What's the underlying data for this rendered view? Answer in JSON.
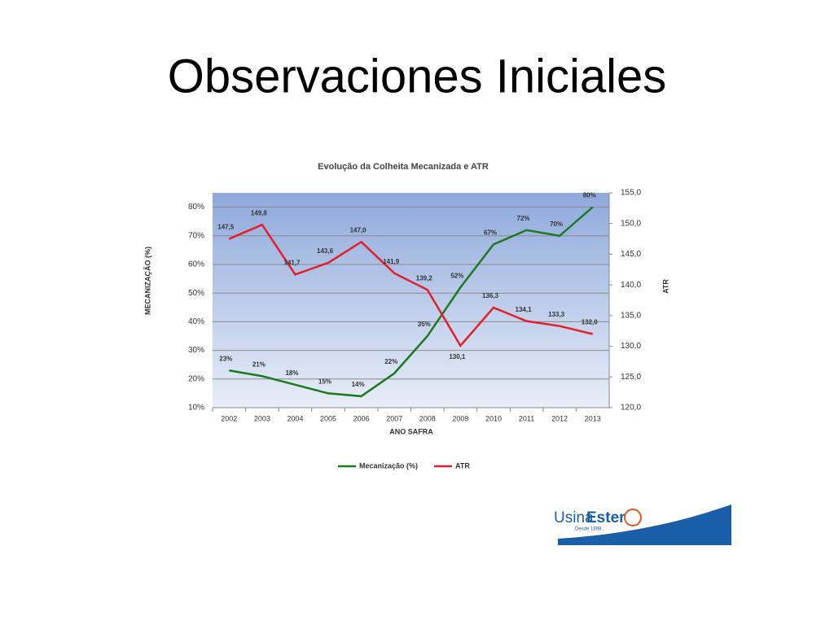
{
  "slide_title": "Observaciones Iniciales",
  "chart_data": {
    "type": "line",
    "title": "Evolução da Colheita Mecanizada e ATR",
    "x_label": "ANO SAFRA",
    "y_label": "MECANIZAÇÃO (%)",
    "y2_label": "ATR",
    "categories": [
      "2002",
      "2003",
      "2004",
      "2005",
      "2006",
      "2007",
      "2008",
      "2009",
      "2010",
      "2011",
      "2012",
      "2013"
    ],
    "series": [
      {
        "name": "Mecanização (%)",
        "color": "#1f7a1f",
        "values": [
          23,
          21,
          18,
          15,
          14,
          22,
          35,
          52,
          67,
          72,
          70,
          80
        ],
        "value_labels": [
          "23%",
          "21%",
          "18%",
          "15%",
          "14%",
          "22%",
          "35%",
          "52%",
          "67%",
          "72%",
          "70%",
          "80%"
        ]
      },
      {
        "name": "ATR",
        "color": "#e3202a",
        "axis": "y2",
        "values": [
          147.5,
          149.8,
          141.7,
          143.6,
          147.0,
          141.9,
          139.2,
          130.1,
          136.3,
          134.1,
          133.3,
          132.0
        ],
        "value_labels": [
          "147,5",
          "149,8",
          "141,7",
          "143,6",
          "147,0",
          "141,9",
          "139,2",
          "130,1",
          "136,3",
          "134,1",
          "133,3",
          "132,0"
        ]
      }
    ],
    "ylim": [
      10,
      85
    ],
    "yticks": [
      {
        "value": 10,
        "label": "10%"
      },
      {
        "value": 20,
        "label": "20%"
      },
      {
        "value": 30,
        "label": "30%"
      },
      {
        "value": 40,
        "label": "40%"
      },
      {
        "value": 50,
        "label": "50%"
      },
      {
        "value": 60,
        "label": "60%"
      },
      {
        "value": 70,
        "label": "70%"
      },
      {
        "value": 80,
        "label": "80%"
      }
    ],
    "y2lim": [
      120,
      155
    ],
    "y2ticks": [
      {
        "value": 120,
        "label": "120,0"
      },
      {
        "value": 125,
        "label": "125,0"
      },
      {
        "value": 130,
        "label": "130,0"
      },
      {
        "value": 135,
        "label": "135,0"
      },
      {
        "value": 140,
        "label": "140,0"
      },
      {
        "value": 145,
        "label": "145,0"
      },
      {
        "value": 150,
        "label": "150,0"
      },
      {
        "value": 155,
        "label": "155,0"
      }
    ],
    "grid": true,
    "legend": "bottom"
  },
  "logo": {
    "usina": "Usina",
    "ester": "Ester",
    "tagline": "Desde 1898"
  }
}
